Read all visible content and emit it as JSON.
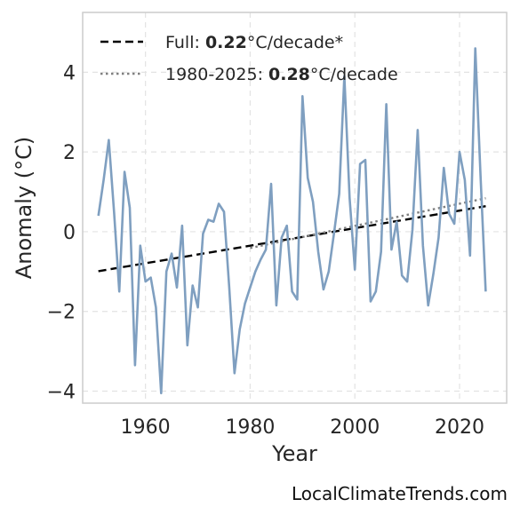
{
  "chart_data": {
    "type": "line",
    "title": "",
    "xlabel": "Year",
    "ylabel": "Anomaly (°C)",
    "xlim": [
      1948,
      2029
    ],
    "ylim": [
      -4.3,
      5.5
    ],
    "xticks": [
      1960,
      1980,
      2000,
      2020
    ],
    "yticks": [
      -4,
      -2,
      0,
      2,
      4
    ],
    "ytick_labels": [
      "−4",
      "−2",
      "0",
      "2",
      "4"
    ],
    "grid": true,
    "legend_position": "upper-left",
    "series": [
      {
        "color": "#7f9fc0",
        "x": [
          1951,
          1952,
          1953,
          1954,
          1955,
          1956,
          1957,
          1958,
          1959,
          1960,
          1961,
          1962,
          1963,
          1964,
          1965,
          1966,
          1967,
          1968,
          1969,
          1970,
          1971,
          1972,
          1973,
          1974,
          1975,
          1976,
          1977,
          1978,
          1979,
          1980,
          1981,
          1982,
          1983,
          1984,
          1985,
          1986,
          1987,
          1988,
          1989,
          1990,
          1991,
          1992,
          1993,
          1994,
          1995,
          1996,
          1997,
          1998,
          1999,
          2000,
          2001,
          2002,
          2003,
          2004,
          2005,
          2006,
          2007,
          2008,
          2009,
          2010,
          2011,
          2012,
          2013,
          2014,
          2015,
          2016,
          2017,
          2018,
          2019,
          2020,
          2021,
          2022,
          2023,
          2024,
          2025
        ],
        "y": [
          0.4,
          1.3,
          2.3,
          0.5,
          -1.5,
          1.5,
          0.6,
          -3.35,
          -0.35,
          -1.25,
          -1.15,
          -1.9,
          -4.05,
          -1.0,
          -0.55,
          -1.4,
          0.15,
          -2.85,
          -1.35,
          -1.9,
          -0.05,
          0.3,
          0.25,
          0.7,
          0.5,
          -1.4,
          -3.55,
          -2.45,
          -1.8,
          -1.4,
          -1.0,
          -0.7,
          -0.45,
          1.2,
          -1.85,
          -0.15,
          0.15,
          -1.5,
          -1.7,
          3.4,
          1.35,
          0.75,
          -0.5,
          -1.45,
          -1.0,
          -0.05,
          0.95,
          3.9,
          0.85,
          -0.95,
          1.7,
          1.8,
          -1.75,
          -1.5,
          -0.5,
          3.2,
          -0.45,
          0.25,
          -1.1,
          -1.25,
          0.05,
          2.55,
          -0.35,
          -1.85,
          -1.05,
          -0.15,
          1.6,
          0.45,
          0.2,
          2.0,
          1.3,
          -0.6,
          4.6,
          1.4,
          -1.5
        ]
      }
    ],
    "trend_lines": [
      {
        "x": [
          1951,
          2025
        ],
        "y": [
          -0.99,
          0.64
        ],
        "style": "dashed",
        "color": "#000000",
        "legend_prefix": "Full: ",
        "legend_bold": "0.22",
        "legend_suffix": "°C/decade*"
      },
      {
        "x": [
          1980,
          2025
        ],
        "y": [
          -0.41,
          0.84
        ],
        "style": "dotted",
        "color": "#7f7f7f",
        "legend_prefix": "1980-2025: ",
        "legend_bold": "0.28",
        "legend_suffix": "°C/decade"
      }
    ]
  },
  "watermark": "LocalClimateTrends.com"
}
